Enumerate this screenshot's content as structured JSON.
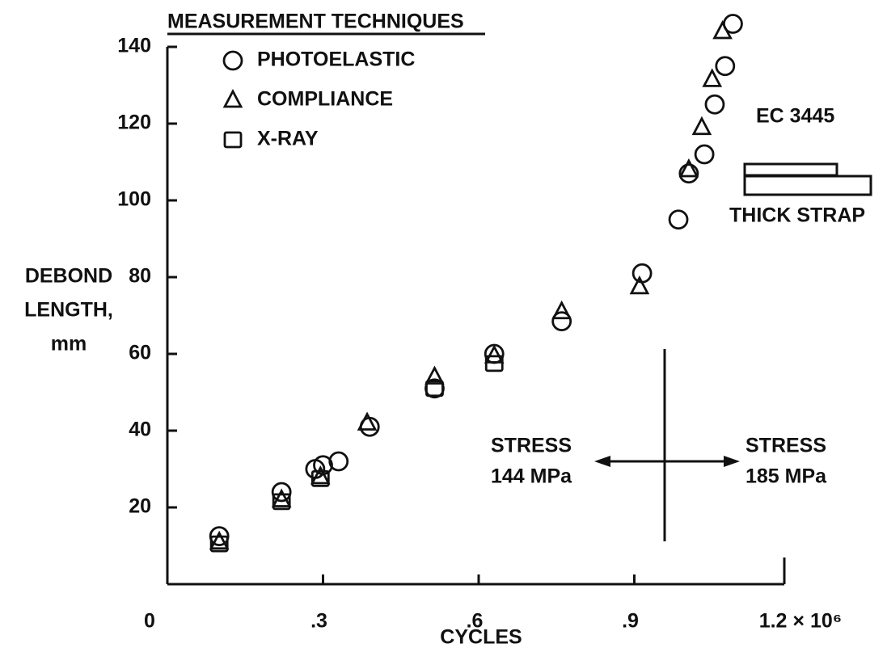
{
  "chart_data": {
    "type": "scatter",
    "legend_title": "MEASUREMENT TECHNIQUES",
    "xlabel": "CYCLES",
    "ylabel": [
      "DEBOND",
      "LENGTH,",
      "mm"
    ],
    "xlim": [
      0,
      1.2
    ],
    "ylim": [
      0,
      140
    ],
    "xticks": [
      0,
      {
        "value": 0.3,
        "label": ".3"
      },
      {
        "value": 0.6,
        "label": ".6"
      },
      {
        "value": 0.9,
        "label": ".9"
      },
      {
        "value": 1.2,
        "label": "1.2 × 10⁶"
      }
    ],
    "yticks": [
      20,
      40,
      60,
      80,
      100,
      120,
      140
    ],
    "series": [
      {
        "name": "PHOTOELASTIC",
        "marker": "circle",
        "color": "#111",
        "x": [
          0.1,
          0.22,
          0.285,
          0.3,
          0.33,
          0.39,
          0.515,
          0.63,
          0.76,
          0.915,
          0.985,
          1.005,
          1.035,
          1.055,
          1.075,
          1.09
        ],
        "values": [
          12.5,
          24,
          30,
          31,
          32,
          41,
          51,
          60,
          68.5,
          81,
          95,
          107,
          112,
          125,
          135,
          146
        ]
      },
      {
        "name": "COMPLIANCE",
        "marker": "triangle",
        "color": "#111",
        "x": [
          0.1,
          0.22,
          0.295,
          0.385,
          0.515,
          0.63,
          0.76,
          0.91,
          1.005,
          1.03,
          1.05,
          1.07
        ],
        "values": [
          11,
          22,
          28,
          42,
          54,
          59.5,
          71,
          77.5,
          108,
          119,
          131.5,
          144
        ]
      },
      {
        "name": "X-RAY",
        "marker": "square",
        "color": "#111",
        "x": [
          0.1,
          0.22,
          0.295,
          0.515,
          0.63
        ],
        "values": [
          10.5,
          21.5,
          27.5,
          51,
          57.5
        ]
      }
    ],
    "annotations": [
      {
        "lines": [
          "EC 3445"
        ]
      },
      {
        "lines": [
          "THICK STRAP"
        ]
      },
      {
        "lines": [
          "STRESS",
          "144 MPa"
        ]
      },
      {
        "lines": [
          "STRESS",
          "185 MPa"
        ]
      }
    ]
  }
}
